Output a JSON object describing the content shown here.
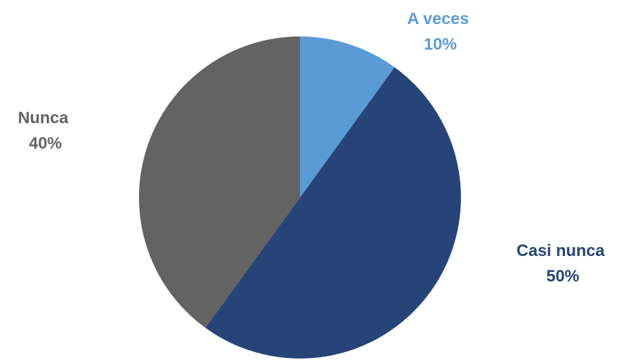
{
  "chart_data": {
    "type": "pie",
    "title": "",
    "slices": [
      {
        "label": "A veces",
        "value": 10,
        "value_label": "10%",
        "color": "#5b9bd5"
      },
      {
        "label": "Casi nunca",
        "value": 50,
        "value_label": "50%",
        "color": "#264478"
      },
      {
        "label": "Nunca",
        "value": 40,
        "value_label": "40%",
        "color": "#636363"
      }
    ],
    "start_angle_deg": 0,
    "direction": "clockwise",
    "legend": "none",
    "labels": "outside"
  }
}
